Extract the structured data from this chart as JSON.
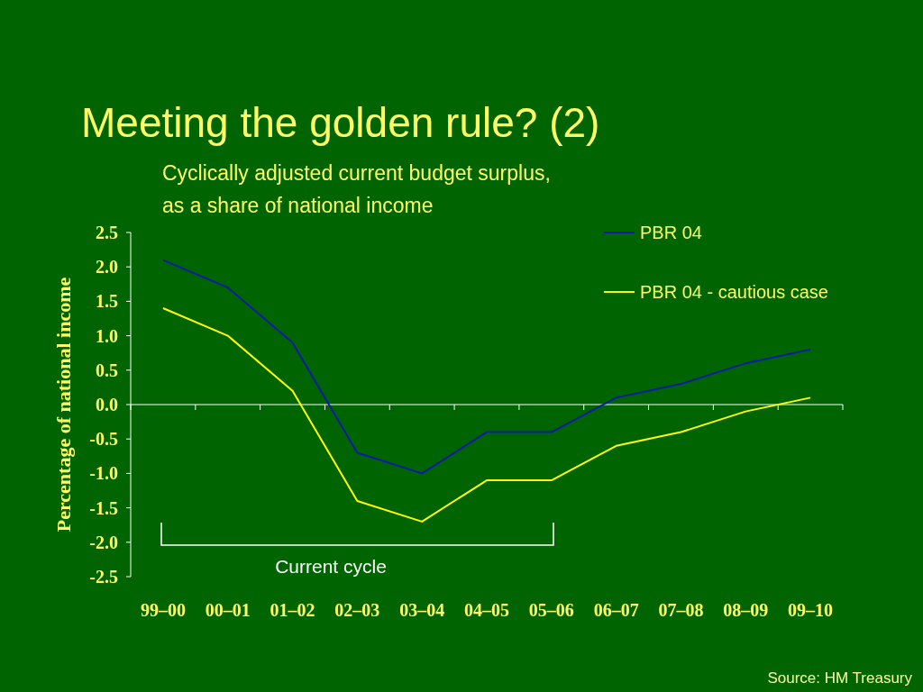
{
  "chart_data": {
    "type": "line",
    "title": "Meeting the golden rule? (2)",
    "subtitle": "Cyclically adjusted current budget surplus,\nas a share of national income",
    "ylabel": "Percentage of national income",
    "categories": [
      "99–00",
      "00–01",
      "01–02",
      "02–03",
      "03–04",
      "04–05",
      "05–06",
      "06–07",
      "07–08",
      "08–09",
      "09–10"
    ],
    "series": [
      {
        "name": "PBR 04",
        "color": "#0a1aa8",
        "values": [
          2.1,
          1.7,
          0.9,
          -0.7,
          -1.0,
          -0.4,
          -0.4,
          0.1,
          0.3,
          0.6,
          0.8
        ]
      },
      {
        "name": "PBR 04 - cautious case",
        "color": "#ffff00",
        "values": [
          1.4,
          1.0,
          0.2,
          -1.4,
          -1.7,
          -1.1,
          -1.1,
          -0.6,
          -0.4,
          -0.1,
          0.1
        ]
      }
    ],
    "ylim": [
      -2.5,
      2.5
    ],
    "yticks": [
      {
        "value": 2.5,
        "label": "2.5"
      },
      {
        "value": 2.0,
        "label": "2.0"
      },
      {
        "value": 1.5,
        "label": "1.5"
      },
      {
        "value": 1.0,
        "label": "1.0"
      },
      {
        "value": 0.5,
        "label": "0.5"
      },
      {
        "value": 0,
        "label": "0.0"
      },
      {
        "value": -0.5,
        "label": "-0.5"
      },
      {
        "value": -1.0,
        "label": "-1.0"
      },
      {
        "value": -1.5,
        "label": "-1.5"
      },
      {
        "value": -2.0,
        "label": "-2.0"
      },
      {
        "value": -2.5,
        "label": "-2.5"
      }
    ],
    "annotations": [
      "Current cycle",
      "Source: HM Treasury"
    ],
    "legend": "top right",
    "marker": "none",
    "line_style": "solid"
  }
}
